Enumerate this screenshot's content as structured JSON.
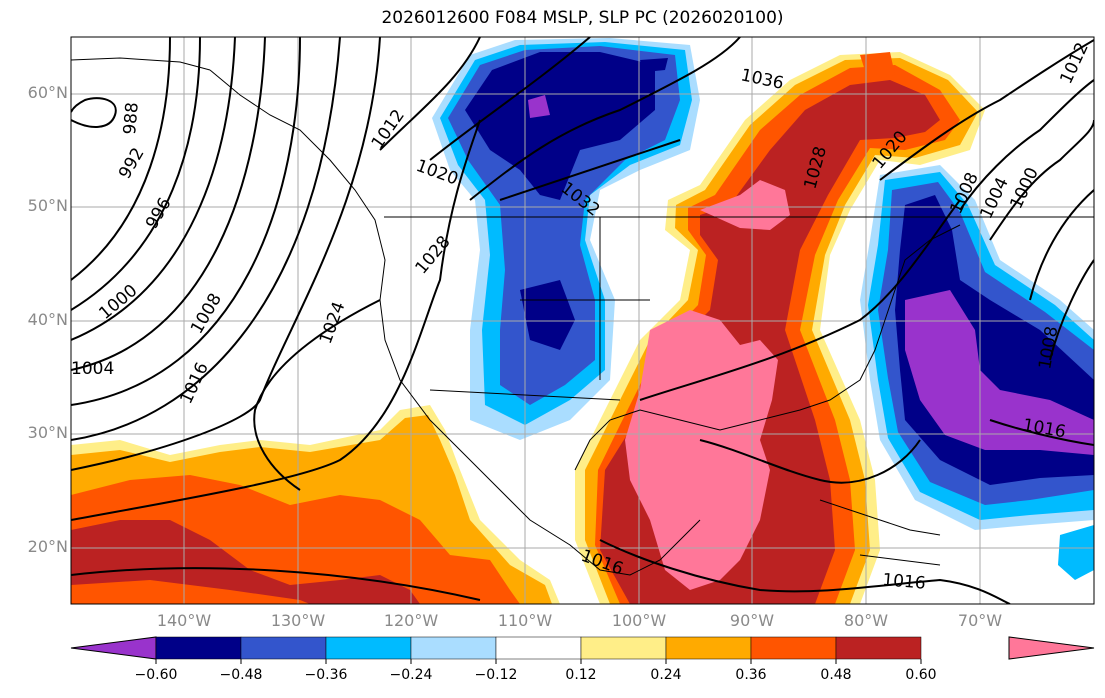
{
  "title": "2026012600 F084 MSLP, SLP PC (2026020100)",
  "lat_labels": [
    "60°N",
    "50°N",
    "40°N",
    "30°N",
    "20°N"
  ],
  "lon_labels": [
    "140°W",
    "130°W",
    "120°W",
    "110°W",
    "100°W",
    "90°W",
    "80°W",
    "70°W"
  ],
  "colorbar": {
    "ticks": [
      "−0.60",
      "−0.48",
      "−0.36",
      "−0.24",
      "−0.12",
      "0.12",
      "0.24",
      "0.36",
      "0.48",
      "0.60"
    ],
    "colors": [
      "#9933cc",
      "#000088",
      "#3355cc",
      "#00bbff",
      "#aaddff",
      "#ffffff",
      "#ffee88",
      "#ffaa00",
      "#ff5500",
      "#bb2222",
      "#ff7799"
    ]
  },
  "isobars": [
    "1036",
    "1032",
    "1028",
    "1028",
    "1024",
    "1020",
    "1020",
    "1016",
    "1016",
    "1016",
    "1016",
    "1012",
    "1012",
    "1008",
    "1008",
    "1008",
    "1004",
    "1004",
    "1000",
    "1000",
    "996",
    "992",
    "988"
  ]
}
